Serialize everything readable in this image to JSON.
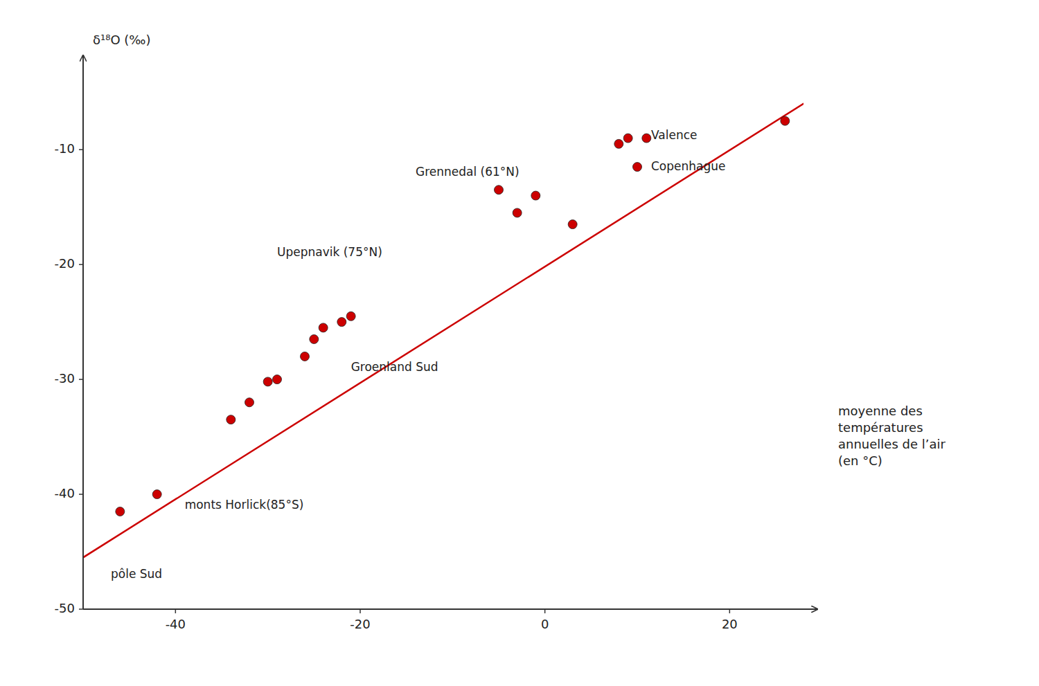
{
  "chart_data": {
    "type": "scatter",
    "y_label": "δ¹⁸O (‰)",
    "x_label": "moyenne des\ntempératures\nannuelles de l’air\n(en °C)",
    "xlim": [
      -50,
      28
    ],
    "ylim": [
      -50,
      -3
    ],
    "xticks": [
      -40,
      -20,
      0,
      20
    ],
    "yticks": [
      -10,
      -20,
      -30,
      -40,
      -50
    ],
    "grid": false,
    "series": [
      {
        "type": "scatter",
        "color": "#cc0000",
        "marker": "circle",
        "x": [
          -46,
          -42,
          -34,
          -32,
          -30,
          -29,
          -26,
          -25,
          -24,
          -22,
          -21,
          -5,
          -3,
          -1,
          3,
          8,
          9,
          10,
          11,
          26
        ],
        "values": [
          -41.5,
          -40.0,
          -33.5,
          -32.0,
          -30.2,
          -30.0,
          -28.0,
          -26.5,
          -25.5,
          -25.0,
          -24.5,
          -13.5,
          -15.5,
          -14.0,
          -16.5,
          -9.5,
          -9.0,
          -11.5,
          -9.0,
          -7.5
        ]
      },
      {
        "type": "line",
        "color": "#cc0000",
        "line_style": "solid",
        "x": [
          -50,
          28
        ],
        "values": [
          -45.5,
          -6.0
        ]
      }
    ],
    "annotations": [
      {
        "label": "pôle Sud",
        "x": -47,
        "y": -46.5
      },
      {
        "label": "monts Horlick(85°S)",
        "x": -39,
        "y": -40.5
      },
      {
        "label": "Groenland Sud",
        "x": -21,
        "y": -28.5
      },
      {
        "label": "Upepnavik (75°N)",
        "x": -29,
        "y": -18.5
      },
      {
        "label": "Grennedal (61°N)",
        "x": -14,
        "y": -11.5
      },
      {
        "label": "Valence",
        "x": 11.5,
        "y": -8.3
      },
      {
        "label": "Copenhague",
        "x": 11.5,
        "y": -11.0
      }
    ]
  }
}
